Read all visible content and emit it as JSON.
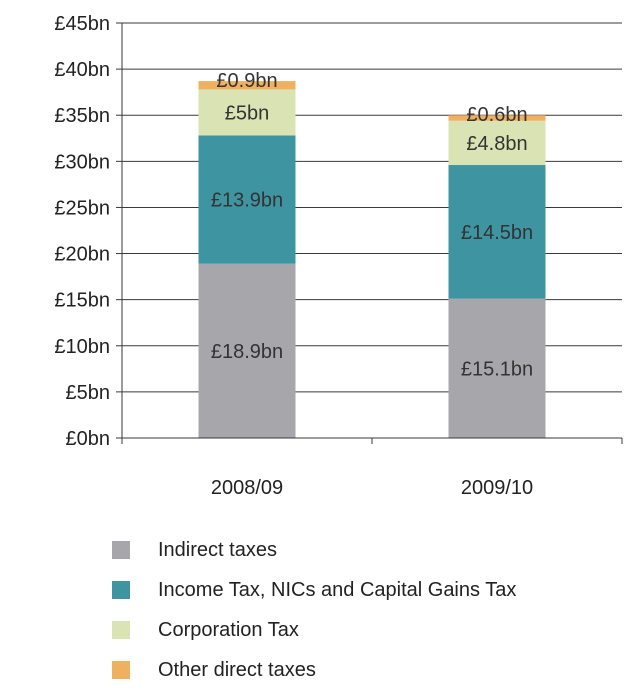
{
  "chart_data": {
    "type": "bar",
    "stacked": true,
    "categories": [
      "2008/09",
      "2009/10"
    ],
    "series": [
      {
        "name": "Indirect taxes",
        "values": [
          18.9,
          15.1
        ],
        "labels": [
          "£18.9bn",
          "£15.1bn"
        ],
        "color": "#a7a7ab"
      },
      {
        "name": "Income Tax, NICs and Capital Gains Tax",
        "values": [
          13.9,
          14.5
        ],
        "labels": [
          "£13.9bn",
          "£14.5bn"
        ],
        "color": "#3e94a0"
      },
      {
        "name": "Corporation Tax",
        "values": [
          5,
          4.8
        ],
        "labels": [
          "£5bn",
          "£4.8bn"
        ],
        "color": "#d9e3b3"
      },
      {
        "name": "Other direct taxes",
        "values": [
          0.9,
          0.6
        ],
        "labels": [
          "£0.9bn",
          "£0.6bn"
        ],
        "color": "#efb15f"
      }
    ],
    "y_ticks": [
      "£0bn",
      "£5bn",
      "£10bn",
      "£15bn",
      "£20bn",
      "£25bn",
      "£30bn",
      "£35bn",
      "£40bn",
      "£45bn"
    ],
    "ylim": [
      0,
      45
    ],
    "y_step": 5,
    "grid": true,
    "legend_position": "bottom",
    "title": "",
    "xlabel": "",
    "ylabel": ""
  }
}
